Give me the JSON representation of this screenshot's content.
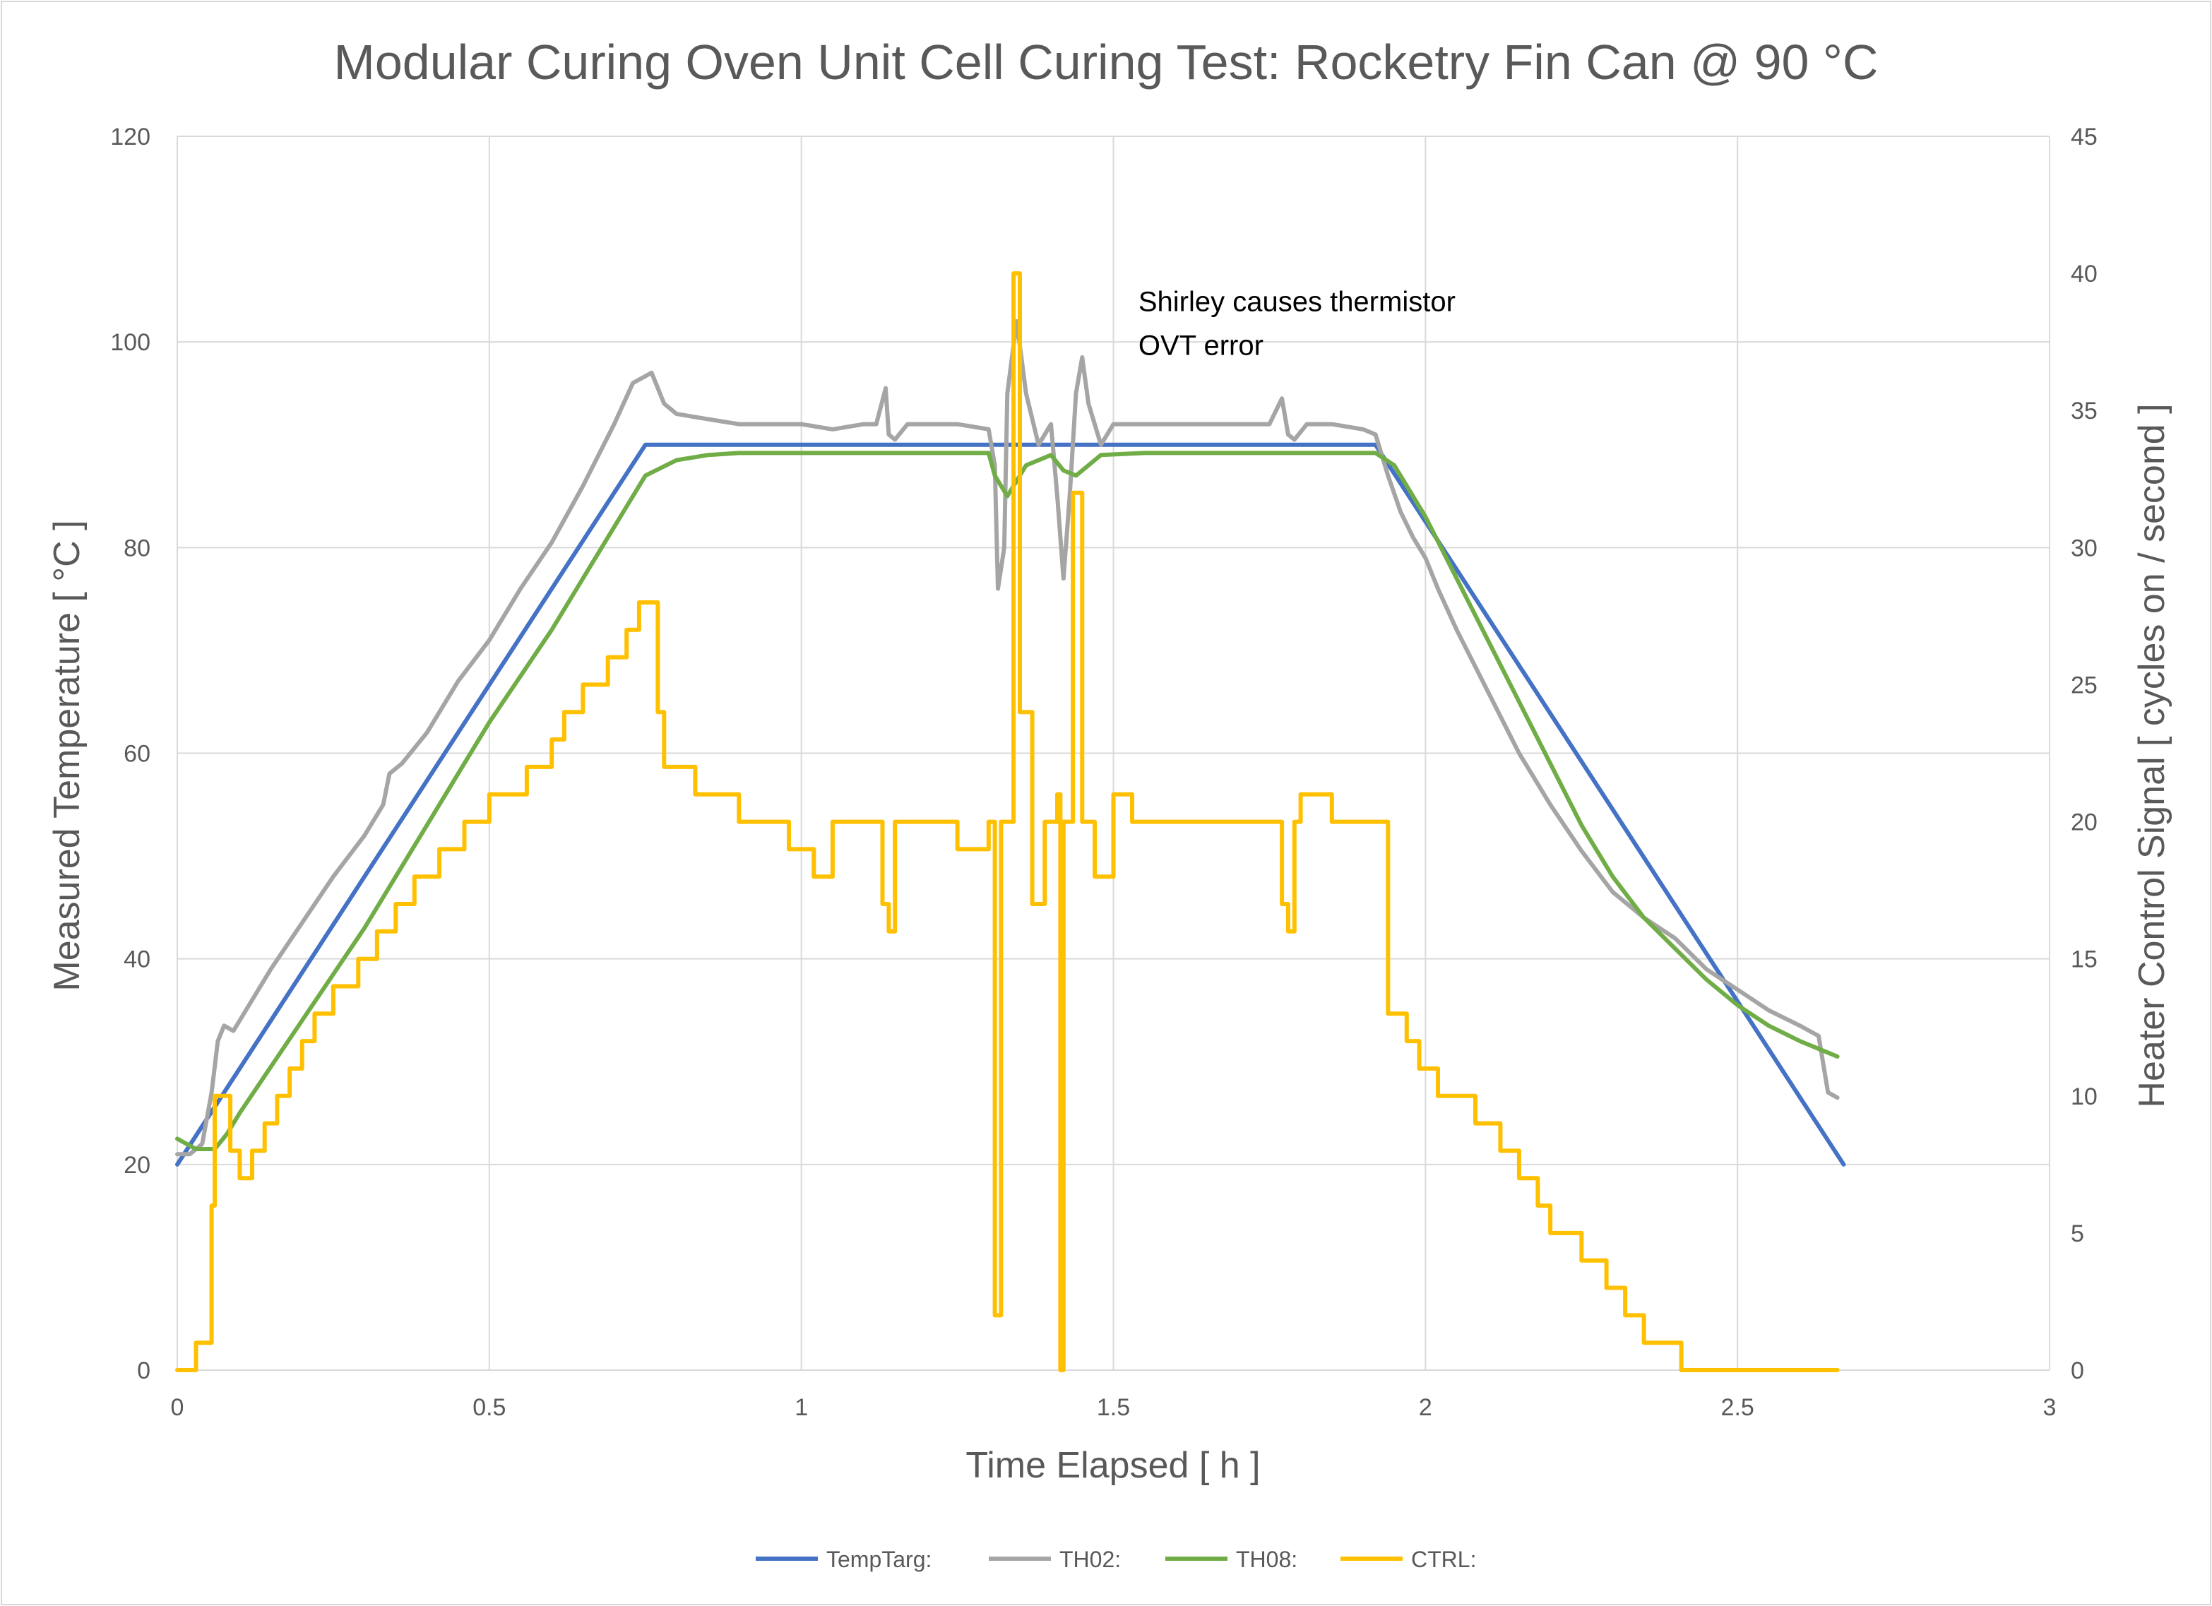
{
  "chart_data": {
    "type": "line",
    "title": "Modular Curing Oven Unit Cell Curing Test: Rocketry Fin Can @ 90 °C",
    "xlabel": "Time Elapsed [ h ]",
    "ylabel": "Measured Temperature [ °C ]",
    "y2label": "Heater Control Signal [ cycles on / second ]",
    "xlim": [
      0,
      3
    ],
    "ylim": [
      0,
      120
    ],
    "y2lim": [
      0,
      45
    ],
    "xticks": [
      "0",
      "0.5",
      "1",
      "1.5",
      "2",
      "2.5",
      "3"
    ],
    "yticks": [
      "0",
      "20",
      "40",
      "60",
      "80",
      "100",
      "120"
    ],
    "y2ticks": [
      "0",
      "5",
      "10",
      "15",
      "20",
      "25",
      "30",
      "35",
      "40",
      "45"
    ],
    "grid": true,
    "legend_position": "bottom",
    "annotation": {
      "lines": [
        "Shirley causes thermistor",
        "OVT error"
      ],
      "x": 1.54,
      "y": 103
    },
    "series": [
      {
        "name": "TempTarg:",
        "axis": "left",
        "color": "#4472c4",
        "step": false,
        "points": [
          [
            0.0,
            20
          ],
          [
            0.75,
            90
          ],
          [
            1.92,
            90
          ],
          [
            2.67,
            20
          ]
        ]
      },
      {
        "name": "TH02:",
        "axis": "left",
        "color": "#a5a5a5",
        "step": false,
        "points": [
          [
            0.0,
            21
          ],
          [
            0.02,
            21
          ],
          [
            0.04,
            22
          ],
          [
            0.055,
            27
          ],
          [
            0.065,
            32
          ],
          [
            0.075,
            33.5
          ],
          [
            0.09,
            33
          ],
          [
            0.1,
            34
          ],
          [
            0.15,
            39
          ],
          [
            0.2,
            43.5
          ],
          [
            0.25,
            48
          ],
          [
            0.3,
            52
          ],
          [
            0.33,
            55
          ],
          [
            0.34,
            58
          ],
          [
            0.36,
            59
          ],
          [
            0.4,
            62
          ],
          [
            0.45,
            67
          ],
          [
            0.5,
            71
          ],
          [
            0.55,
            76
          ],
          [
            0.6,
            80.5
          ],
          [
            0.65,
            86
          ],
          [
            0.7,
            92
          ],
          [
            0.73,
            96
          ],
          [
            0.76,
            97
          ],
          [
            0.78,
            94
          ],
          [
            0.8,
            93
          ],
          [
            0.85,
            92.5
          ],
          [
            0.9,
            92
          ],
          [
            0.95,
            92
          ],
          [
            1.0,
            92
          ],
          [
            1.05,
            91.5
          ],
          [
            1.1,
            92
          ],
          [
            1.12,
            92
          ],
          [
            1.135,
            95.5
          ],
          [
            1.14,
            91
          ],
          [
            1.15,
            90.5
          ],
          [
            1.17,
            92
          ],
          [
            1.2,
            92
          ],
          [
            1.25,
            92
          ],
          [
            1.3,
            91.5
          ],
          [
            1.31,
            88
          ],
          [
            1.315,
            76
          ],
          [
            1.325,
            80
          ],
          [
            1.33,
            95
          ],
          [
            1.345,
            102
          ],
          [
            1.36,
            95
          ],
          [
            1.38,
            90
          ],
          [
            1.4,
            92
          ],
          [
            1.41,
            85
          ],
          [
            1.42,
            77
          ],
          [
            1.43,
            85
          ],
          [
            1.44,
            95
          ],
          [
            1.45,
            98.5
          ],
          [
            1.46,
            94
          ],
          [
            1.48,
            90
          ],
          [
            1.5,
            92
          ],
          [
            1.55,
            92
          ],
          [
            1.6,
            92
          ],
          [
            1.65,
            92
          ],
          [
            1.7,
            92
          ],
          [
            1.75,
            92
          ],
          [
            1.77,
            94.5
          ],
          [
            1.78,
            91
          ],
          [
            1.79,
            90.5
          ],
          [
            1.81,
            92
          ],
          [
            1.85,
            92
          ],
          [
            1.9,
            91.5
          ],
          [
            1.92,
            91
          ],
          [
            1.94,
            87
          ],
          [
            1.96,
            83.5
          ],
          [
            1.98,
            81
          ],
          [
            2.0,
            79
          ],
          [
            2.02,
            76
          ],
          [
            2.05,
            72
          ],
          [
            2.1,
            66
          ],
          [
            2.15,
            60
          ],
          [
            2.2,
            55
          ],
          [
            2.25,
            50.5
          ],
          [
            2.3,
            46.5
          ],
          [
            2.35,
            44
          ],
          [
            2.4,
            42
          ],
          [
            2.45,
            39
          ],
          [
            2.5,
            37
          ],
          [
            2.55,
            35
          ],
          [
            2.6,
            33.5
          ],
          [
            2.63,
            32.5
          ],
          [
            2.645,
            27
          ],
          [
            2.66,
            26.5
          ]
        ]
      },
      {
        "name": "TH08:",
        "axis": "left",
        "color": "#70ad47",
        "step": false,
        "points": [
          [
            0.0,
            22.5
          ],
          [
            0.03,
            21.5
          ],
          [
            0.06,
            21.5
          ],
          [
            0.08,
            23
          ],
          [
            0.1,
            25
          ],
          [
            0.15,
            29.5
          ],
          [
            0.2,
            34
          ],
          [
            0.25,
            38.5
          ],
          [
            0.3,
            43
          ],
          [
            0.35,
            48
          ],
          [
            0.4,
            53
          ],
          [
            0.45,
            58
          ],
          [
            0.5,
            63
          ],
          [
            0.55,
            67.5
          ],
          [
            0.6,
            72
          ],
          [
            0.65,
            77
          ],
          [
            0.7,
            82
          ],
          [
            0.75,
            87
          ],
          [
            0.8,
            88.5
          ],
          [
            0.85,
            89
          ],
          [
            0.9,
            89.2
          ],
          [
            1.0,
            89.2
          ],
          [
            1.1,
            89.2
          ],
          [
            1.2,
            89.2
          ],
          [
            1.3,
            89.2
          ],
          [
            1.31,
            87
          ],
          [
            1.33,
            85
          ],
          [
            1.36,
            88
          ],
          [
            1.4,
            89
          ],
          [
            1.42,
            87.5
          ],
          [
            1.44,
            87
          ],
          [
            1.48,
            89
          ],
          [
            1.55,
            89.2
          ],
          [
            1.65,
            89.2
          ],
          [
            1.75,
            89.2
          ],
          [
            1.85,
            89.2
          ],
          [
            1.92,
            89.2
          ],
          [
            1.95,
            88
          ],
          [
            2.0,
            83
          ],
          [
            2.05,
            77
          ],
          [
            2.1,
            71
          ],
          [
            2.15,
            65
          ],
          [
            2.2,
            59
          ],
          [
            2.25,
            53
          ],
          [
            2.3,
            48
          ],
          [
            2.35,
            44
          ],
          [
            2.4,
            41
          ],
          [
            2.45,
            38
          ],
          [
            2.5,
            35.5
          ],
          [
            2.55,
            33.5
          ],
          [
            2.6,
            32
          ],
          [
            2.64,
            31
          ],
          [
            2.66,
            30.5
          ]
        ]
      },
      {
        "name": "CTRL:",
        "axis": "right",
        "color": "#ffc000",
        "step": true,
        "points": [
          [
            0.0,
            0
          ],
          [
            0.03,
            1
          ],
          [
            0.045,
            1
          ],
          [
            0.055,
            6
          ],
          [
            0.06,
            10
          ],
          [
            0.07,
            10
          ],
          [
            0.085,
            8
          ],
          [
            0.1,
            7
          ],
          [
            0.12,
            8
          ],
          [
            0.14,
            9
          ],
          [
            0.16,
            10
          ],
          [
            0.18,
            11
          ],
          [
            0.2,
            12
          ],
          [
            0.22,
            13
          ],
          [
            0.25,
            14
          ],
          [
            0.29,
            15
          ],
          [
            0.32,
            16
          ],
          [
            0.35,
            17
          ],
          [
            0.38,
            18
          ],
          [
            0.42,
            19
          ],
          [
            0.46,
            20
          ],
          [
            0.5,
            21
          ],
          [
            0.56,
            22
          ],
          [
            0.6,
            23
          ],
          [
            0.62,
            24
          ],
          [
            0.65,
            25
          ],
          [
            0.69,
            26
          ],
          [
            0.72,
            27
          ],
          [
            0.74,
            28
          ],
          [
            0.77,
            24
          ],
          [
            0.78,
            22
          ],
          [
            0.83,
            21
          ],
          [
            0.85,
            21
          ],
          [
            0.9,
            20
          ],
          [
            0.95,
            20
          ],
          [
            0.98,
            19
          ],
          [
            1.0,
            19
          ],
          [
            1.02,
            18
          ],
          [
            1.05,
            20
          ],
          [
            1.12,
            20
          ],
          [
            1.13,
            17
          ],
          [
            1.14,
            16
          ],
          [
            1.15,
            20
          ],
          [
            1.23,
            20
          ],
          [
            1.25,
            19
          ],
          [
            1.3,
            20
          ],
          [
            1.31,
            2
          ],
          [
            1.32,
            20
          ],
          [
            1.34,
            40
          ],
          [
            1.35,
            24
          ],
          [
            1.37,
            17
          ],
          [
            1.39,
            20
          ],
          [
            1.41,
            21
          ],
          [
            1.415,
            0
          ],
          [
            1.42,
            20
          ],
          [
            1.435,
            32
          ],
          [
            1.45,
            20
          ],
          [
            1.47,
            18
          ],
          [
            1.5,
            21
          ],
          [
            1.53,
            20
          ],
          [
            1.6,
            20
          ],
          [
            1.7,
            20
          ],
          [
            1.76,
            20
          ],
          [
            1.77,
            17
          ],
          [
            1.78,
            16
          ],
          [
            1.79,
            20
          ],
          [
            1.8,
            21
          ],
          [
            1.85,
            20
          ],
          [
            1.9,
            20
          ],
          [
            1.92,
            20
          ],
          [
            1.94,
            13
          ],
          [
            1.97,
            12
          ],
          [
            1.99,
            11
          ],
          [
            2.02,
            10
          ],
          [
            2.08,
            9
          ],
          [
            2.12,
            8
          ],
          [
            2.15,
            7
          ],
          [
            2.18,
            6
          ],
          [
            2.2,
            5
          ],
          [
            2.25,
            4
          ],
          [
            2.29,
            3
          ],
          [
            2.32,
            2
          ],
          [
            2.35,
            1
          ],
          [
            2.41,
            0
          ],
          [
            2.5,
            0
          ],
          [
            2.66,
            0
          ]
        ]
      }
    ]
  }
}
